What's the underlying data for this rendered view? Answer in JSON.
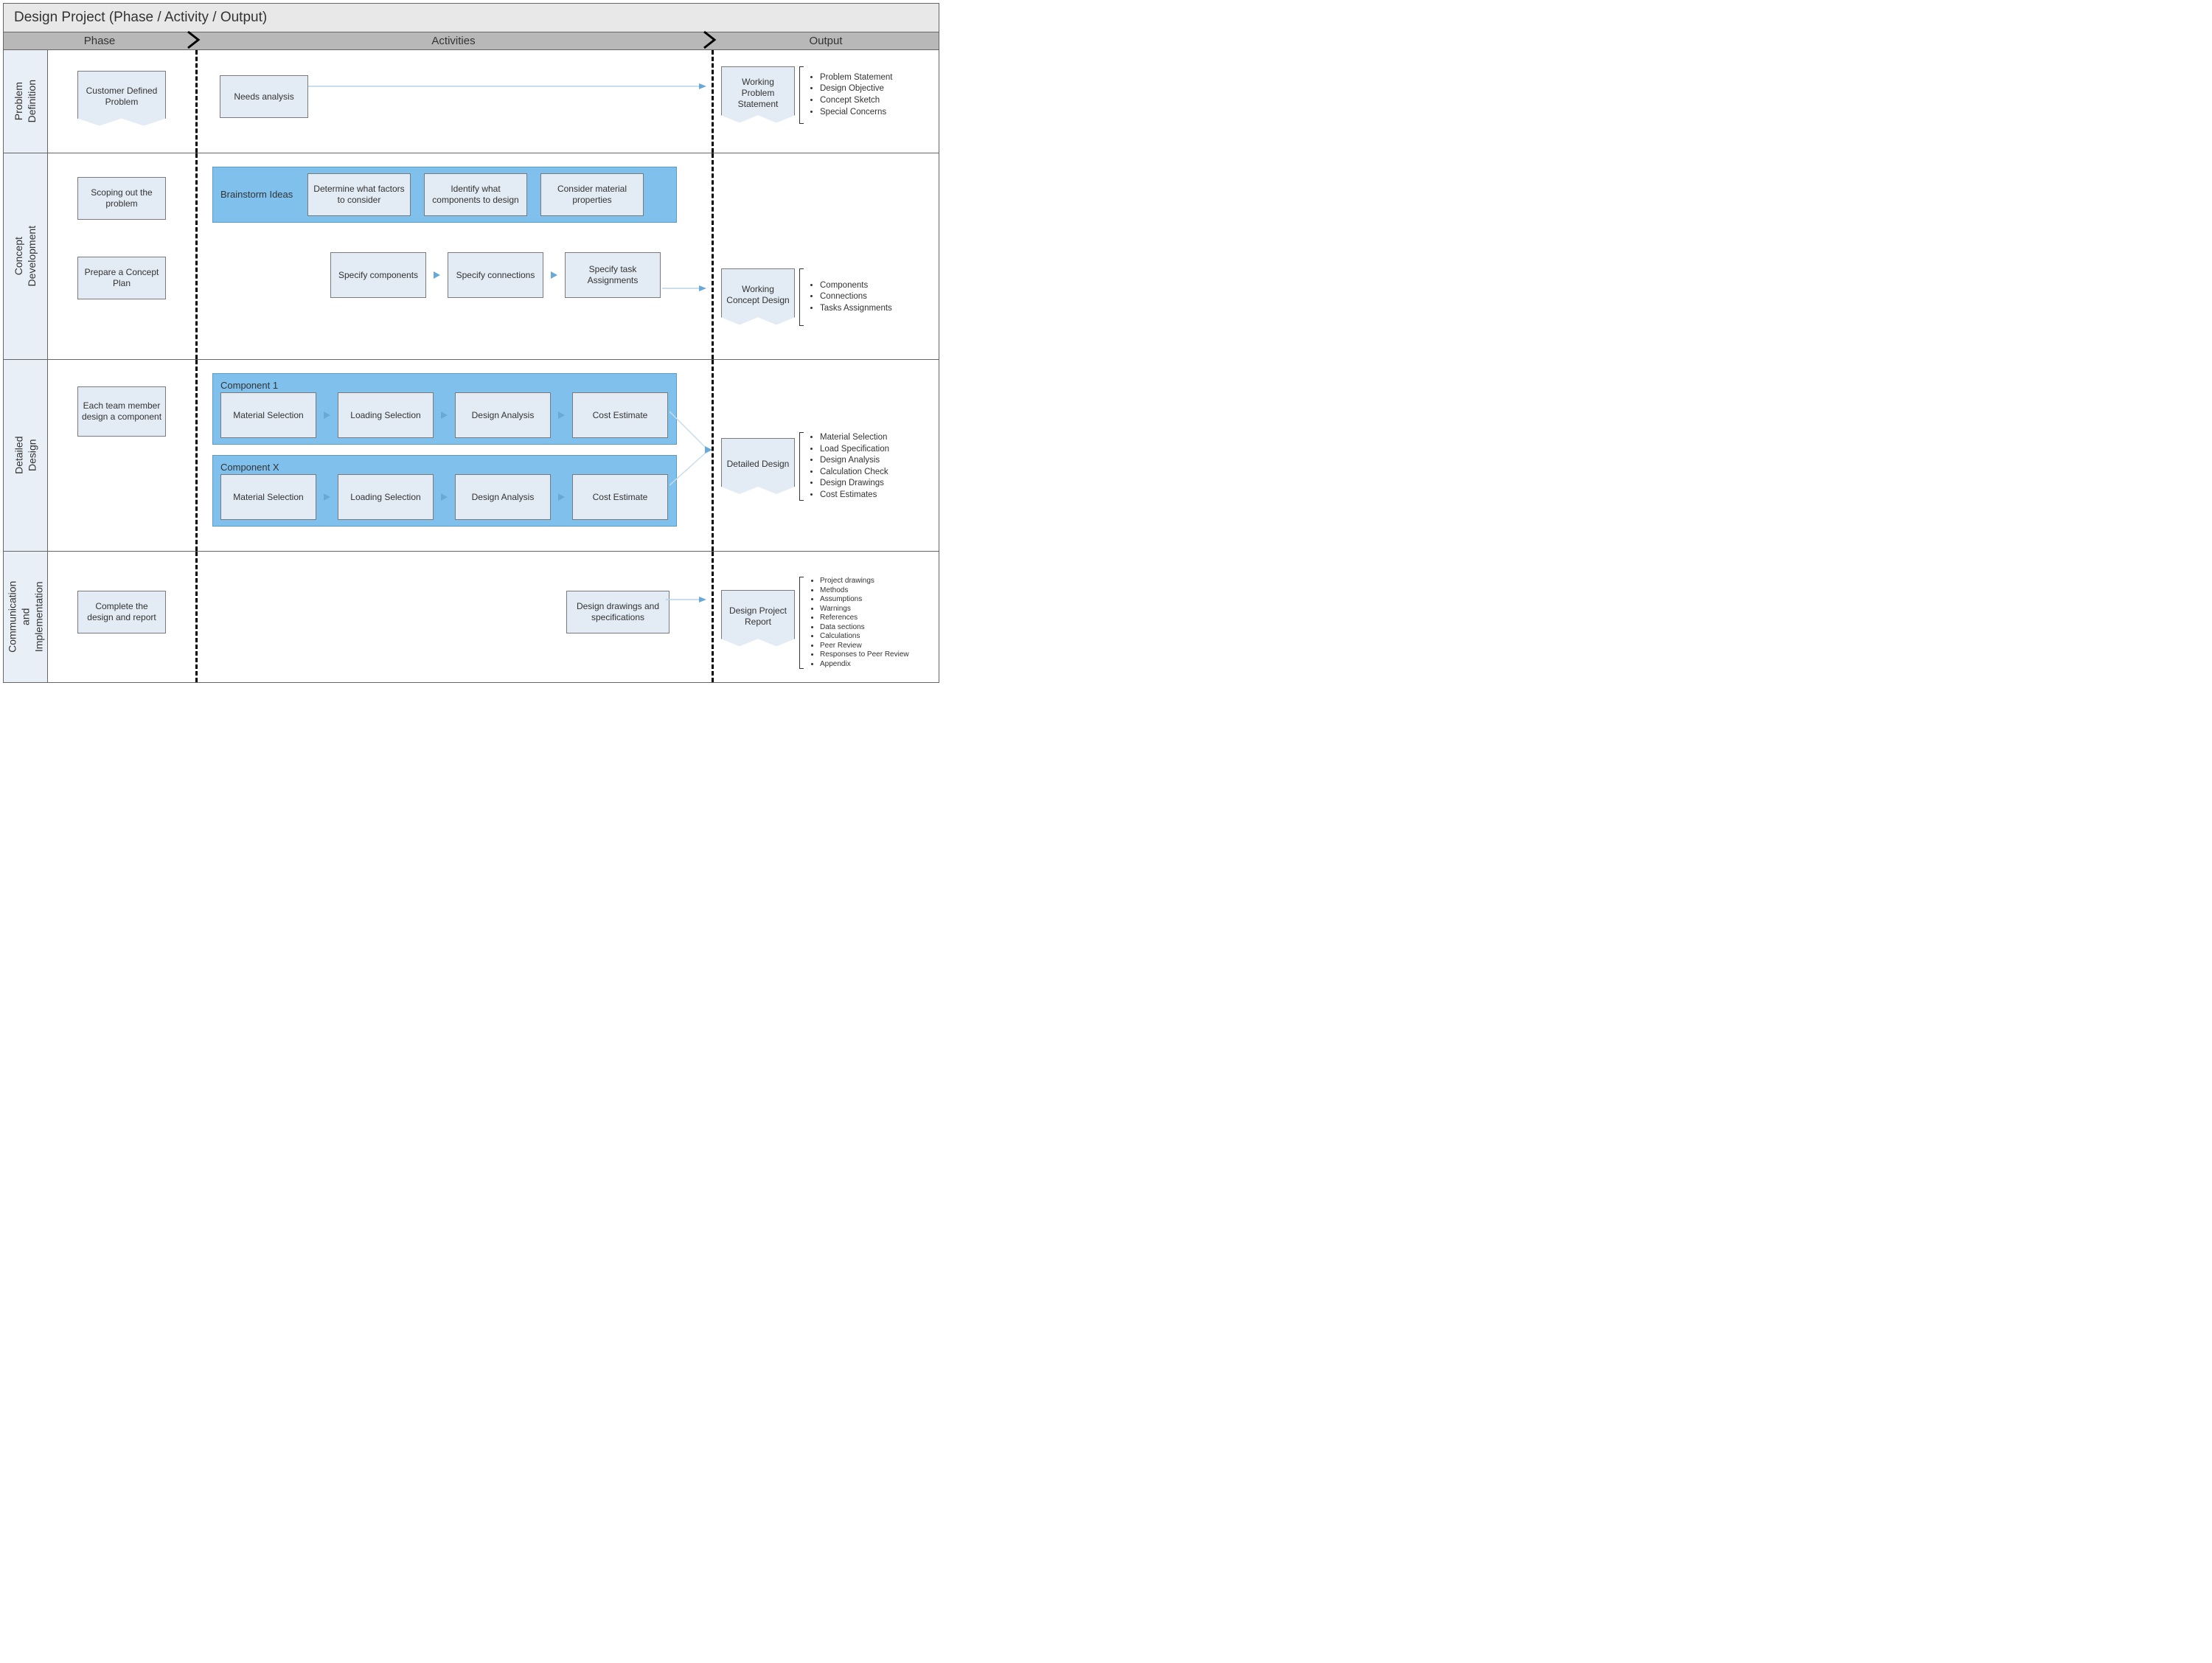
{
  "title": "Design Project (Phase / Activity / Output)",
  "columns": {
    "phase": "Phase",
    "activities": "Activities",
    "output": "Output"
  },
  "colors": {
    "header_bg": "#b8b8b8",
    "title_bg": "#e8e8e8",
    "phase_label_bg": "#e9eff7",
    "box_fill": "#e3ebf4",
    "box_border": "#7a7a7a",
    "panel_fill": "#7fc0ed",
    "panel_border": "#5a9bc8",
    "arrow": "#6aa9d6",
    "dashed": "#000000"
  },
  "rows": [
    {
      "label": "Problem\nDefinition",
      "phase_boxes": [
        "Customer Defined Problem"
      ],
      "activities": {
        "simple": [
          "Needs analysis"
        ]
      },
      "output": {
        "doc": "Working Problem Statement",
        "bullets": [
          "Problem Statement",
          "Design Objective",
          "Concept Sketch",
          "Special Concerns"
        ]
      }
    },
    {
      "label": "Concept\nDevelopment",
      "phase_boxes": [
        "Scoping out the problem",
        "Prepare a Concept Plan"
      ],
      "activities": {
        "panel": {
          "title": "Brainstorm Ideas",
          "boxes": [
            "Determine what factors to consider",
            "Identify what components to design",
            "Consider material properties"
          ]
        },
        "chain": [
          "Specify components",
          "Specify connections",
          "Specify task Assignments"
        ]
      },
      "output": {
        "doc": "Working Concept Design",
        "bullets": [
          "Components",
          "Connections",
          "Tasks Assignments"
        ]
      }
    },
    {
      "label": "Detailed\nDesign",
      "phase_boxes": [
        "Each team member design a component"
      ],
      "activities": {
        "components": [
          {
            "title": "Component 1",
            "boxes": [
              "Material Selection",
              "Loading Selection",
              "Design Analysis",
              "Cost Estimate"
            ]
          },
          {
            "title": "Component X",
            "boxes": [
              "Material Selection",
              "Loading Selection",
              "Design Analysis",
              "Cost Estimate"
            ]
          }
        ]
      },
      "output": {
        "doc": "Detailed Design",
        "bullets": [
          "Material Selection",
          "Load Specification",
          "Design Analysis",
          "Calculation Check",
          "Design Drawings",
          "Cost Estimates"
        ]
      }
    },
    {
      "label": "Communication\nand\nImplementation",
      "phase_boxes": [
        "Complete the design and report"
      ],
      "activities": {
        "simple_right": [
          "Design drawings and specifications"
        ]
      },
      "output": {
        "doc": "Design Project Report",
        "bullets_small": [
          "Project drawings",
          "Methods",
          "Assumptions",
          "Warnings",
          "References",
          "Data sections",
          "Calculations",
          "Peer Review",
          "Responses to Peer Review",
          "Appendix"
        ]
      }
    }
  ]
}
